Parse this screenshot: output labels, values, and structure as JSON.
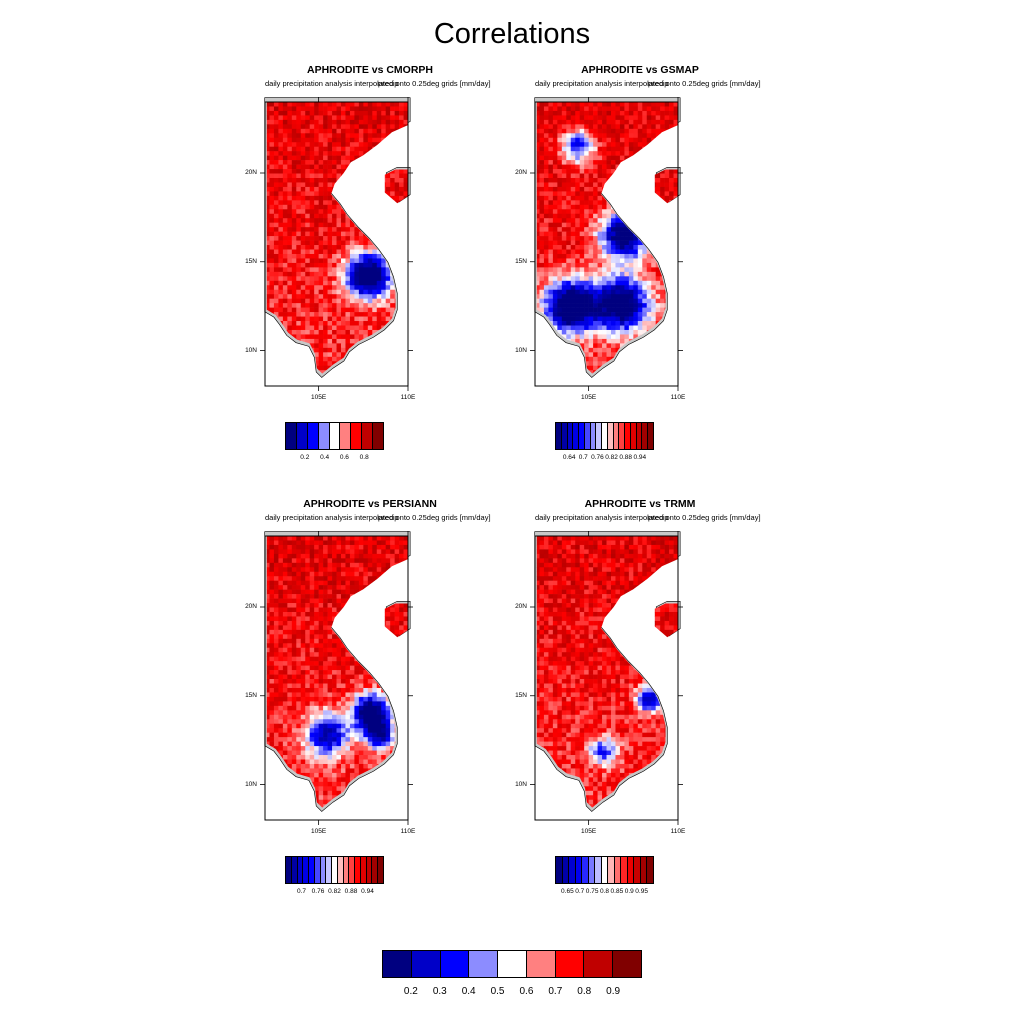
{
  "main_title": "Correlations",
  "colors": {
    "palette": [
      "#000080",
      "#0000c8",
      "#0000ff",
      "#8c8cff",
      "#ffffff",
      "#ff8080",
      "#ff0000",
      "#c00000",
      "#800000"
    ],
    "ocean": "#ffffff",
    "outside_border": "#c8c8c8"
  },
  "axes": {
    "lat_ticks": [
      "20N",
      "15N",
      "10N"
    ],
    "lon_ticks": [
      "105E",
      "110E"
    ]
  },
  "panels": [
    {
      "title": "APHRODITE vs CMORPH",
      "subtitle_left": "daily precipitation analysis interpolated onto 0.25deg grids [mm/day]",
      "subtitle_right": "precip",
      "colorbar_ticks": [
        "0.2",
        "0.4",
        "0.6",
        "0.8"
      ],
      "colorbar_boxes": 9,
      "dominant_correlation": "0.8"
    },
    {
      "title": "APHRODITE vs GSMAP",
      "subtitle_left": "daily precipitation analysis interpolated onto 0.25deg grids [mm/day]",
      "subtitle_right": "precip",
      "colorbar_ticks": [
        "0.64",
        "0.7",
        "0.76",
        "0.82",
        "0.88",
        "0.94"
      ],
      "colorbar_boxes": 17,
      "dominant_correlation": "0.8"
    },
    {
      "title": "APHRODITE vs PERSIANN",
      "subtitle_left": "daily precipitation analysis interpolated onto 0.25deg grids [mm/day]",
      "subtitle_right": "precip",
      "colorbar_ticks": [
        "0.7",
        "0.76",
        "0.82",
        "0.88",
        "0.94"
      ],
      "colorbar_boxes": 17,
      "dominant_correlation": "0.8"
    },
    {
      "title": "APHRODITE vs TRMM",
      "subtitle_left": "daily precipitation analysis interpolated onto 0.25deg grids [mm/day]",
      "subtitle_right": "precip",
      "colorbar_ticks": [
        "0.65",
        "0.7",
        "0.75",
        "0.8",
        "0.85",
        "0.9",
        "0.95"
      ],
      "colorbar_boxes": 15,
      "dominant_correlation": "0.8"
    }
  ],
  "shared_colorbar": {
    "ticks": [
      "0.2",
      "0.3",
      "0.4",
      "0.5",
      "0.6",
      "0.7",
      "0.8",
      "0.9"
    ],
    "boxes": 9
  }
}
